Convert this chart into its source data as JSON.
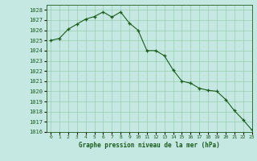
{
  "x": [
    0,
    1,
    2,
    3,
    4,
    5,
    6,
    7,
    8,
    9,
    10,
    11,
    12,
    13,
    14,
    15,
    16,
    17,
    18,
    19,
    20,
    21,
    22,
    23
  ],
  "y": [
    1025.0,
    1025.2,
    1026.1,
    1026.6,
    1027.1,
    1027.35,
    1027.8,
    1027.3,
    1027.8,
    1026.7,
    1026.0,
    1024.0,
    1024.0,
    1023.5,
    1022.1,
    1021.0,
    1020.8,
    1020.3,
    1020.1,
    1020.0,
    1019.2,
    1018.1,
    1017.2,
    1016.2
  ],
  "line_color": "#1a5c1a",
  "marker": "+",
  "marker_size": 3,
  "bg_color": "#c5e8e2",
  "grid_color": "#8ec8a0",
  "title": "Graphe pression niveau de la mer (hPa)",
  "ylim_min": 1016,
  "ylim_max": 1028.5,
  "xlim_min": -0.5,
  "xlim_max": 23,
  "yticks": [
    1016,
    1017,
    1018,
    1019,
    1020,
    1021,
    1022,
    1023,
    1024,
    1025,
    1026,
    1027,
    1028
  ],
  "xtick_labels": [
    "0",
    "1",
    "2",
    "3",
    "4",
    "5",
    "6",
    "7",
    "8",
    "9",
    "10",
    "11",
    "12",
    "13",
    "14",
    "15",
    "16",
    "17",
    "18",
    "19",
    "20",
    "21",
    "22",
    "23"
  ]
}
